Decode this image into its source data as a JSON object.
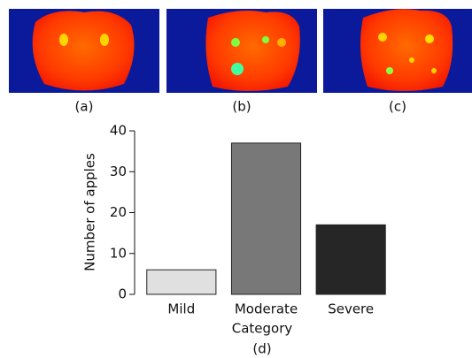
{
  "panels": [
    {
      "label": "(a)"
    },
    {
      "label": "(b)"
    },
    {
      "label": "(c)"
    }
  ],
  "chart_data": {
    "type": "bar",
    "categories": [
      "Mild",
      "Moderate",
      "Severe"
    ],
    "values": [
      6,
      37,
      17
    ],
    "colors": [
      "#e0e0e0",
      "#787878",
      "#262626"
    ],
    "x_label": "Category",
    "y_label": "Number of apples",
    "caption": "(d)",
    "ylim": [
      0,
      40
    ],
    "yticks": [
      0,
      10,
      20,
      30,
      40
    ]
  }
}
